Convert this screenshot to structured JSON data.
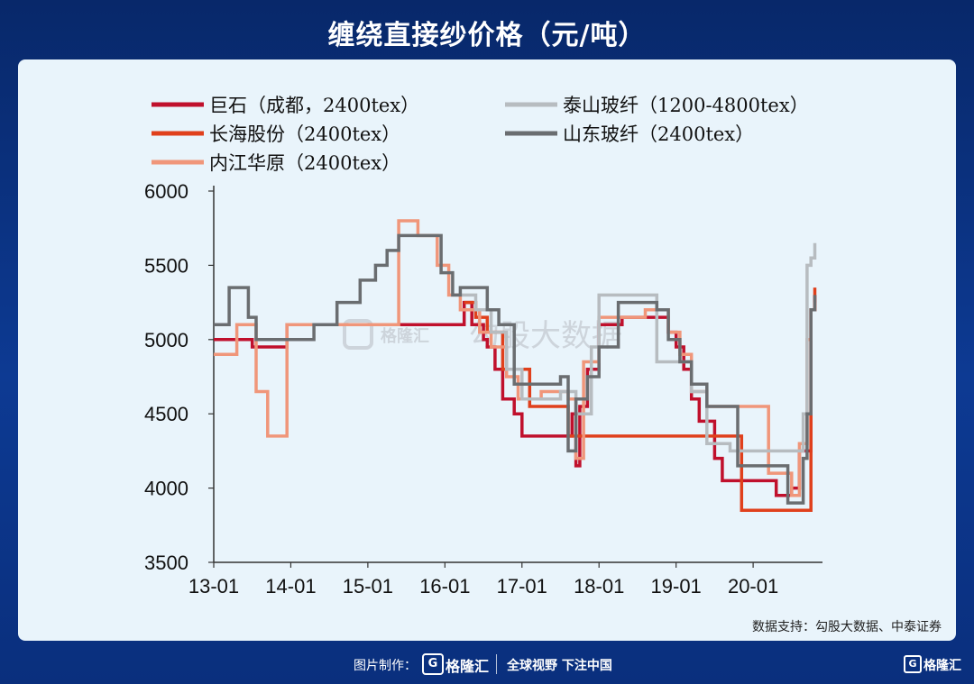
{
  "page": {
    "title": "缠绕直接纱价格（元/吨）",
    "source": "数据支持：勾股大数据、中泰证券",
    "watermark_brand": "格隆汇",
    "watermark_text": "勾股大数据",
    "footer": {
      "made_by": "图片制作：",
      "logo_letter": "G",
      "brand": "格隆汇",
      "slogan": "全球视野 下注中国",
      "corner_brand": "格隆汇"
    }
  },
  "chart_data": {
    "type": "line",
    "title": "缠绕直接纱价格（元/吨）",
    "ylim": [
      3500,
      6000
    ],
    "yticks": [
      "6000",
      "5500",
      "5000",
      "4500",
      "4000",
      "3500"
    ],
    "xlim": [
      2013.0,
      2020.9
    ],
    "xticks": [
      "13-01",
      "14-01",
      "15-01",
      "16-01",
      "17-01",
      "18-01",
      "19-01",
      "20-01"
    ],
    "legend_placement": "top",
    "series": [
      {
        "name": "巨石（成都，2400tex）",
        "color": "#c0102c",
        "x": [
          2013.0,
          2013.25,
          2013.5,
          2013.95,
          2015.0,
          2015.8,
          2016.25,
          2016.35,
          2016.5,
          2016.55,
          2016.65,
          2016.75,
          2016.9,
          2017.0,
          2017.6,
          2017.65,
          2017.7,
          2017.75,
          2017.85,
          2018.0,
          2018.3,
          2018.7,
          2018.9,
          2019.0,
          2019.1,
          2019.2,
          2019.3,
          2019.5,
          2019.6,
          2019.75,
          2020.0,
          2020.3,
          2020.5,
          2020.6,
          2020.75,
          2020.8
        ],
        "y": [
          5000,
          5000,
          4950,
          5100,
          5100,
          5100,
          5250,
          5100,
          5000,
          4950,
          4800,
          4600,
          4500,
          4350,
          4350,
          4500,
          4150,
          4550,
          4800,
          5100,
          5150,
          5150,
          5050,
          4950,
          4800,
          4600,
          4450,
          4200,
          4050,
          4050,
          4050,
          3950,
          4000,
          4250,
          5200,
          5300
        ]
      },
      {
        "name": "长海股份（2400tex）",
        "color": "#e0401c",
        "x": [
          2016.25,
          2016.4,
          2016.55,
          2016.75,
          2017.1,
          2017.5,
          2017.6,
          2019.0,
          2019.85,
          2020.6,
          2020.75,
          2020.8
        ],
        "y": [
          5250,
          5150,
          5050,
          4800,
          4550,
          4550,
          4350,
          4350,
          3850,
          3850,
          5200,
          5350
        ]
      },
      {
        "name": "内江华原（2400tex）",
        "color": "#f0967a",
        "x": [
          2013.0,
          2013.3,
          2013.55,
          2013.7,
          2013.95,
          2015.4,
          2015.65,
          2015.9,
          2016.05,
          2016.2,
          2016.45,
          2016.6,
          2016.8,
          2016.95,
          2017.25,
          2017.6,
          2017.7,
          2017.8,
          2018.0,
          2018.25,
          2018.6,
          2018.9,
          2019.05,
          2019.2,
          2019.4,
          2019.6,
          2019.9,
          2020.2,
          2020.5,
          2020.6,
          2020.7,
          2020.75,
          2020.8
        ],
        "y": [
          4900,
          5100,
          4650,
          4350,
          5100,
          5800,
          5700,
          5500,
          5300,
          5200,
          5050,
          4950,
          4750,
          4600,
          4650,
          4600,
          4200,
          4850,
          5150,
          5150,
          5200,
          5050,
          4900,
          4650,
          4550,
          4550,
          4550,
          4100,
          3950,
          4300,
          5000,
          5200,
          5250
        ]
      },
      {
        "name": "泰山玻纤（1200-4800tex）",
        "color": "#b7bcc0",
        "x": [
          2016.2,
          2016.4,
          2016.6,
          2016.8,
          2017.0,
          2017.5,
          2017.7,
          2017.9,
          2018.0,
          2018.3,
          2018.75,
          2018.9,
          2019.05,
          2019.2,
          2019.4,
          2019.7,
          2020.0,
          2020.5,
          2020.65,
          2020.7,
          2020.75,
          2020.8
        ],
        "y": [
          5300,
          5200,
          5050,
          4800,
          4600,
          4650,
          4500,
          4950,
          5300,
          5300,
          4850,
          4850,
          4850,
          4650,
          4300,
          4250,
          4250,
          4250,
          4500,
          5500,
          5550,
          5650
        ]
      },
      {
        "name": "山东玻纤（2400tex）",
        "color": "#6a6d70",
        "x": [
          2013.0,
          2013.2,
          2013.45,
          2013.55,
          2013.75,
          2014.0,
          2014.3,
          2014.6,
          2014.9,
          2015.1,
          2015.25,
          2015.4,
          2015.6,
          2015.95,
          2016.1,
          2016.2,
          2016.55,
          2016.7,
          2016.9,
          2017.3,
          2017.5,
          2017.6,
          2017.7,
          2017.85,
          2018.0,
          2018.25,
          2018.75,
          2018.9,
          2019.05,
          2019.2,
          2019.4,
          2019.8,
          2020.15,
          2020.45,
          2020.65,
          2020.7,
          2020.75,
          2020.8
        ],
        "y": [
          5100,
          5350,
          5150,
          5000,
          5000,
          5000,
          5100,
          5250,
          5400,
          5500,
          5600,
          5700,
          5700,
          5450,
          5300,
          5350,
          5200,
          5100,
          4700,
          4700,
          4750,
          4250,
          4600,
          4750,
          4950,
          5250,
          5200,
          5000,
          4850,
          4700,
          4550,
          4150,
          4150,
          3900,
          4200,
          4500,
          5200,
          5300
        ]
      }
    ]
  }
}
